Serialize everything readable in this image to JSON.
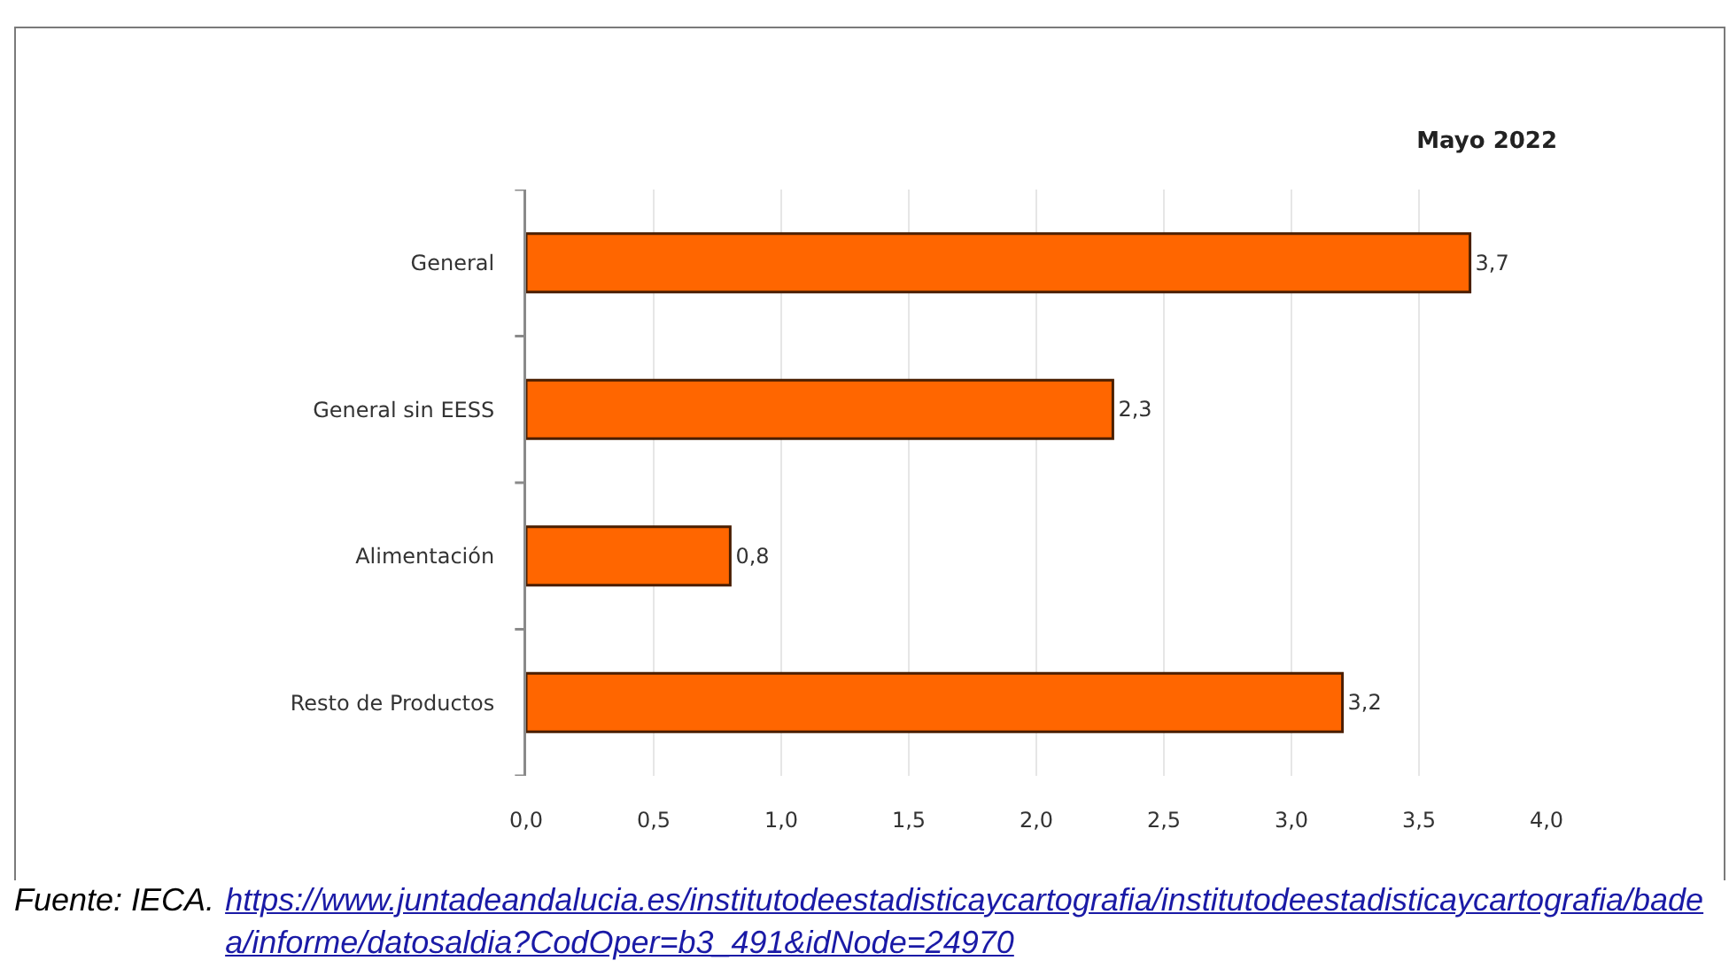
{
  "chart_data": {
    "type": "bar",
    "orientation": "horizontal",
    "title": "Mayo 2022",
    "categories": [
      "General",
      "General sin EESS",
      "Alimentación",
      "Resto de Productos"
    ],
    "values": [
      3.7,
      2.3,
      0.8,
      3.2
    ],
    "value_labels": [
      "3,7",
      "2,3",
      "0,8",
      "3,2"
    ],
    "color": "#ff6600",
    "xlim": [
      0,
      4
    ],
    "xticks": [
      {
        "value": 0,
        "label": "0,0"
      },
      {
        "value": 0.5,
        "label": "0,5"
      },
      {
        "value": 1,
        "label": "1,0"
      },
      {
        "value": 1.5,
        "label": "1,5"
      },
      {
        "value": 2,
        "label": "2,0"
      },
      {
        "value": 2.5,
        "label": "2,5"
      },
      {
        "value": 3,
        "label": "3,0"
      },
      {
        "value": 3.5,
        "label": "3,5"
      },
      {
        "value": 4,
        "label": "4,0"
      }
    ],
    "grid": "x",
    "annotations": [
      "Fuente: IECA.",
      "https://www.juntadeandalucia.es/institutodeestadisticaycartografia/institutodeestadisticaycartografia/badea/informe/datosaldia?CodOper=b3_491&idNode=24970"
    ]
  }
}
